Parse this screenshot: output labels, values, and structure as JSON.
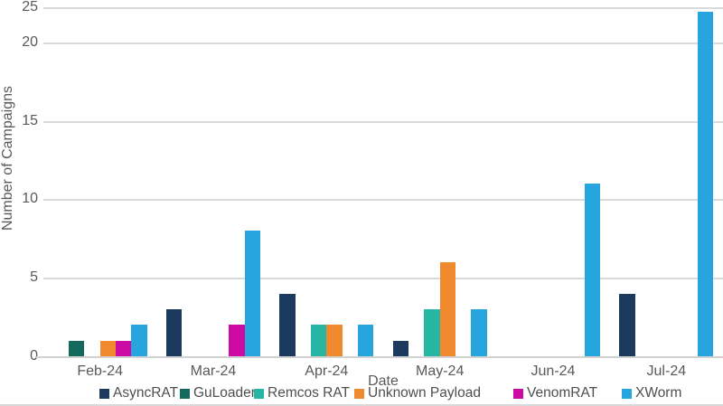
{
  "chart_data": {
    "type": "bar",
    "title": "",
    "xlabel": "Date",
    "ylabel": "Number of Campaigns",
    "categories": [
      "Feb-24",
      "Mar-24",
      "Apr-24",
      "May-24",
      "Jun-24",
      "Jul-24"
    ],
    "series": [
      {
        "name": "AsyncRAT",
        "color": "#1C3A5E",
        "values": [
          0,
          3,
          4,
          1,
          0,
          4
        ]
      },
      {
        "name": "GuLoader",
        "color": "#156A5E",
        "values": [
          1,
          0,
          0,
          0,
          0,
          0
        ]
      },
      {
        "name": "Remcos RAT",
        "color": "#27B6A3",
        "values": [
          0,
          0,
          2,
          3,
          0,
          0
        ]
      },
      {
        "name": "Unknown Payload",
        "color": "#F18A2F",
        "values": [
          1,
          0,
          2,
          6,
          0,
          0
        ]
      },
      {
        "name": "VenomRAT",
        "color": "#CC0BA4",
        "values": [
          1,
          2,
          0,
          0,
          0,
          0
        ]
      },
      {
        "name": "XWorm",
        "color": "#27A5DE",
        "values": [
          2,
          8,
          2,
          3,
          11,
          24
        ]
      }
    ],
    "y_ticks": [
      0,
      5,
      10,
      15,
      20,
      25
    ],
    "ylim": [
      0,
      25
    ],
    "grid": true,
    "legend_position": "bottom",
    "gridline_color": "#dadada",
    "text_color": "#595959"
  }
}
